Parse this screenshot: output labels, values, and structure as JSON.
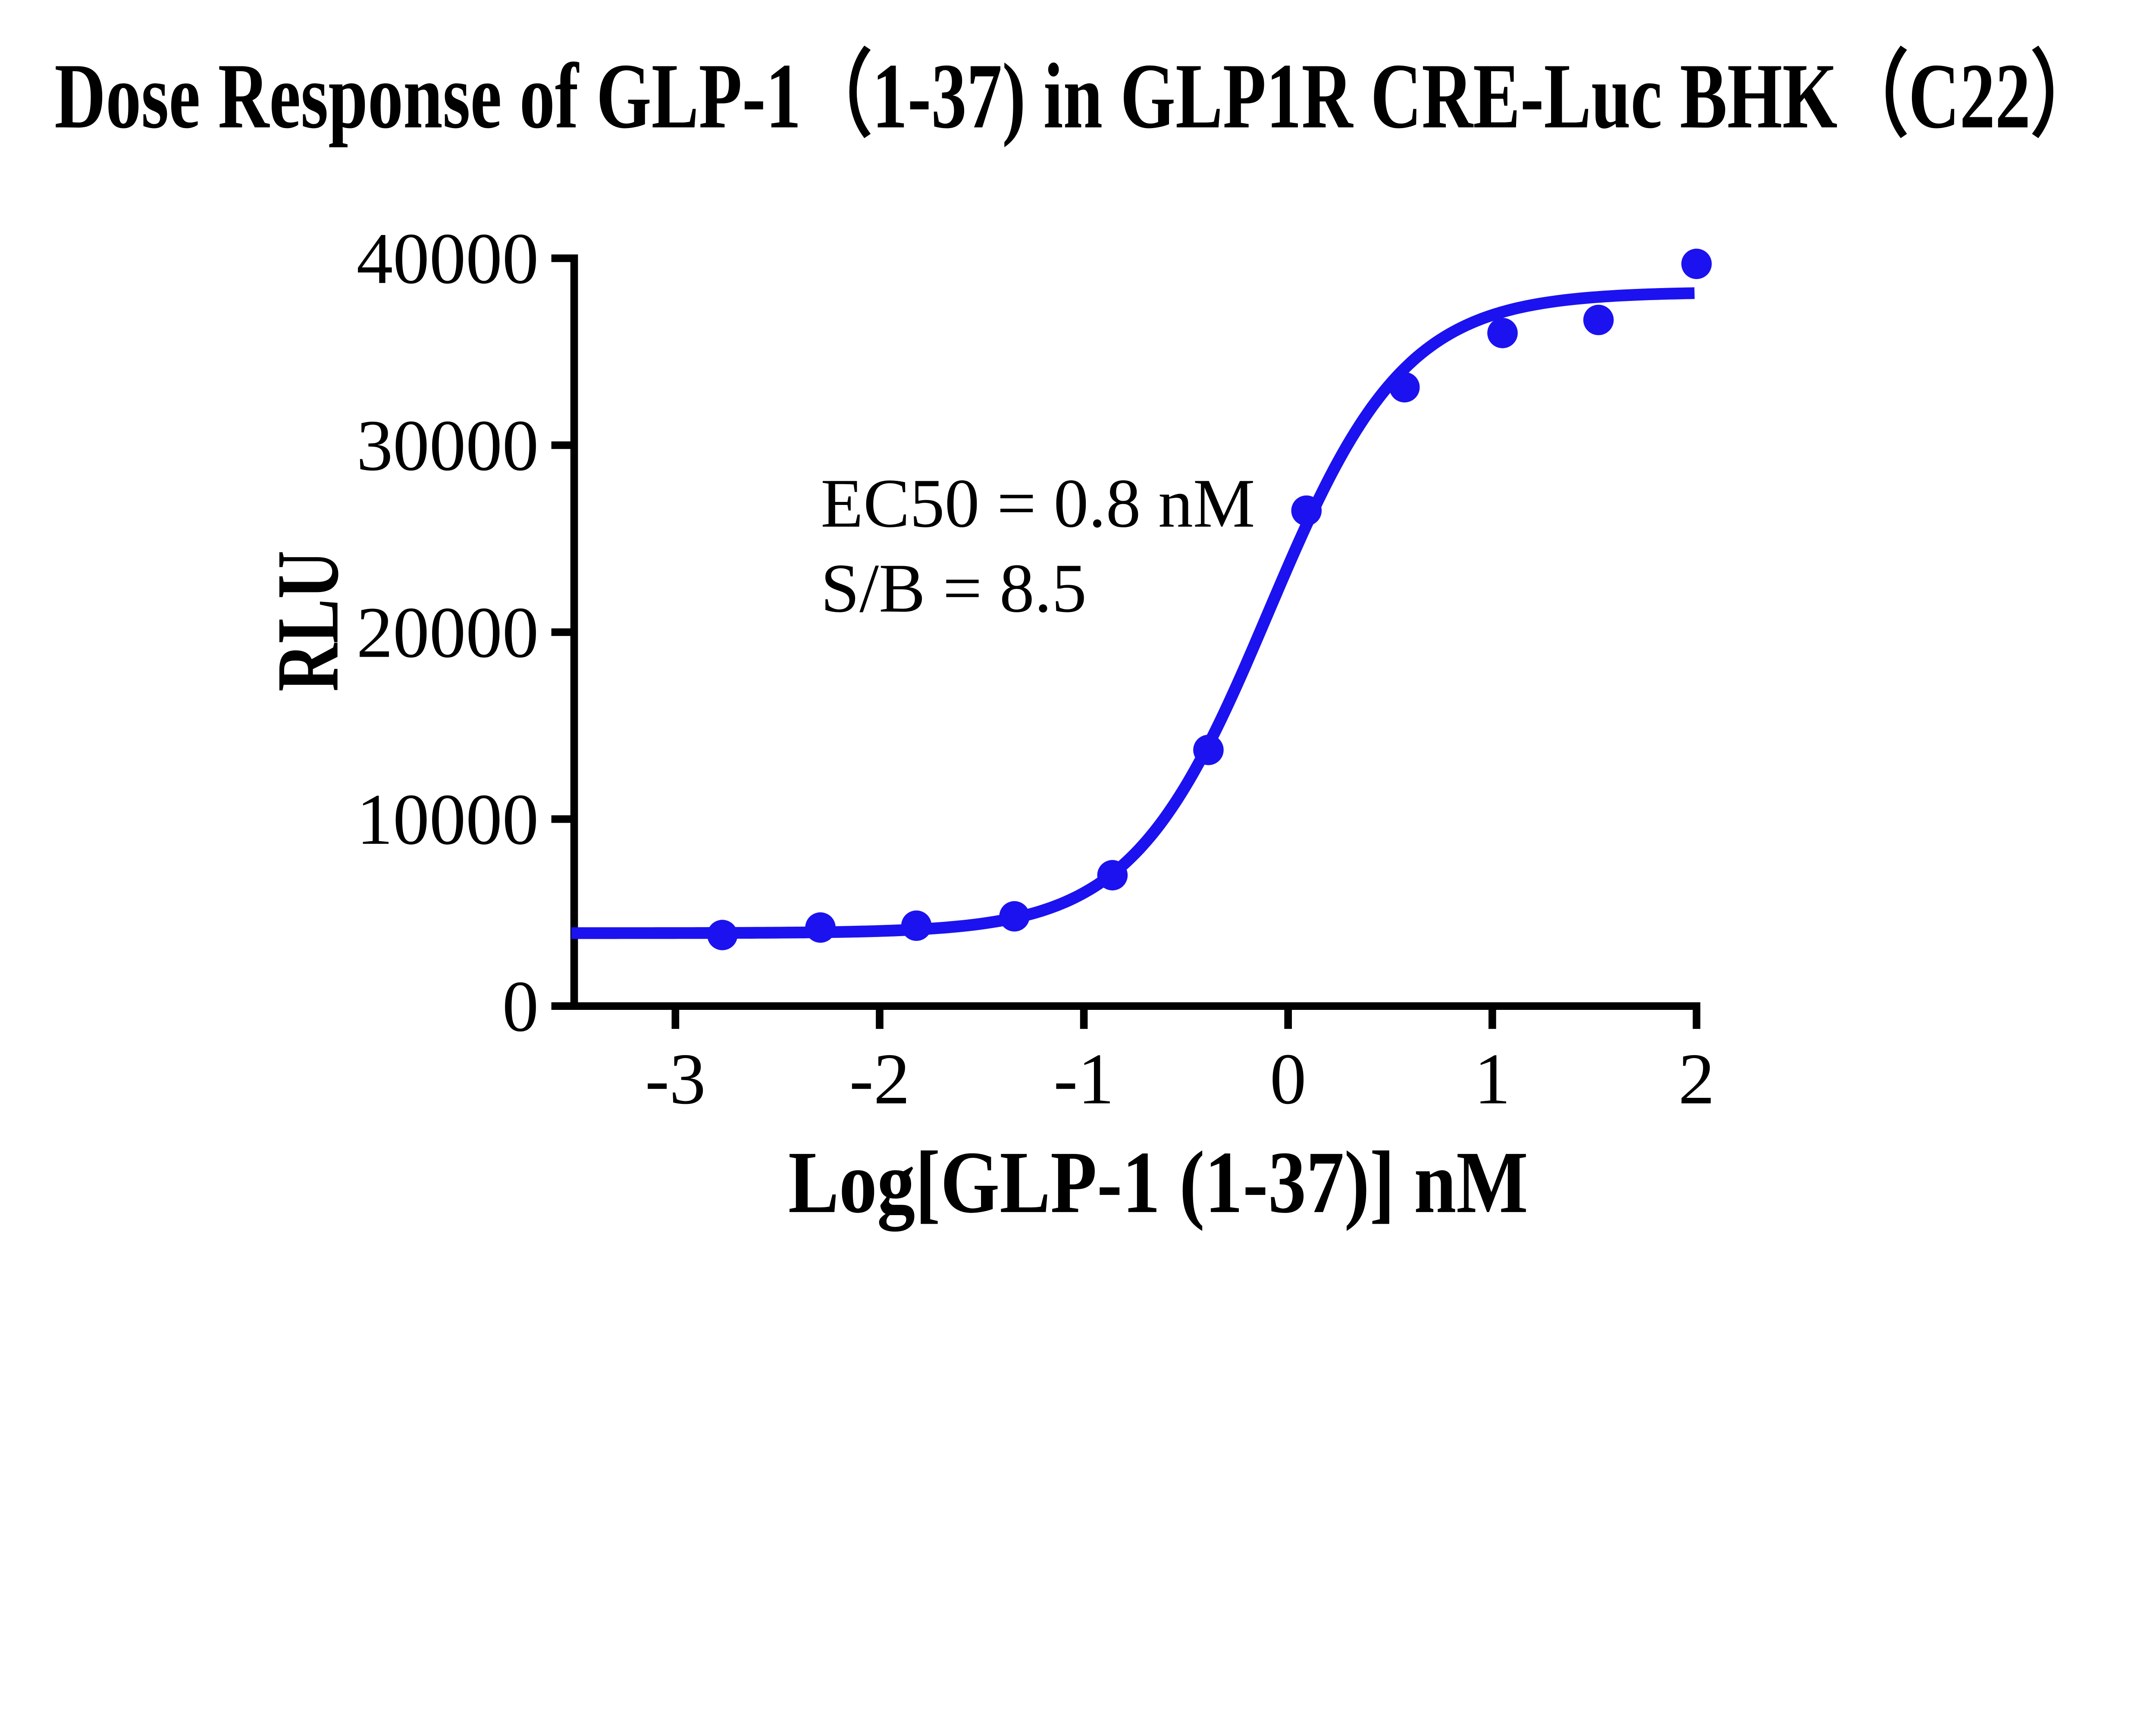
{
  "page": {
    "background_color": "#ffffff",
    "text_color": "#000000"
  },
  "chart_data": {
    "type": "scatter",
    "title": "Dose Response of GLP-1（1-37) in GLP1R CRE-Luc BHK（C22）",
    "xlabel": "Log[GLP-1 (1-37)] nM",
    "ylabel": "RLU",
    "series": [
      {
        "name": "GLP-1 (1-37)",
        "x": [
          -2.77,
          -2.29,
          -1.82,
          -1.34,
          -0.86,
          -0.39,
          0.09,
          0.57,
          1.05,
          1.52,
          2.0
        ],
        "y": [
          3800,
          4200,
          4300,
          4800,
          7000,
          13700,
          26500,
          33100,
          36000,
          36700,
          39700
        ]
      }
    ],
    "annotations": [
      "EC50 = 0.8 nM",
      "S/B = 8.5"
    ],
    "x_ticks": [
      -3,
      -2,
      -1,
      0,
      1,
      2
    ],
    "y_ticks": [
      0,
      10000,
      20000,
      30000,
      40000
    ],
    "xlim": [
      -3.51,
      2.02
    ],
    "ylim": [
      0,
      40000
    ],
    "grid": false,
    "legend": "none",
    "marker_color": "#1b12ef",
    "line_color": "#1b12ef",
    "axis_color": "#000000",
    "fit": {
      "model": "four-parameter logistic",
      "bottom": 3900,
      "top": 38200,
      "log_ec50": -0.097,
      "hill_slope": 1.3,
      "draw_range": [
        -3.51,
        2.0
      ]
    }
  }
}
